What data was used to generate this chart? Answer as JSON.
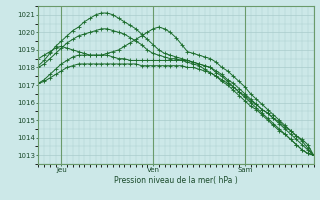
{
  "bg_color": "#cce8e8",
  "grid_color": "#aacccc",
  "line_color": "#1a6b2a",
  "vline_color": "#6a9a6a",
  "xlabel": "Pression niveau de la mer( hPa )",
  "xtick_labels": [
    "Jeu",
    "Ven",
    "Sam"
  ],
  "ylim": [
    1012.5,
    1021.5
  ],
  "yticks": [
    1013,
    1014,
    1015,
    1016,
    1017,
    1018,
    1019,
    1020,
    1021
  ],
  "xlim": [
    0,
    48
  ],
  "xtick_pos": [
    4,
    20,
    36
  ],
  "vline_pos": [
    4,
    20,
    36
  ],
  "series": [
    [
      1017.1,
      1017.2,
      1017.4,
      1017.6,
      1017.8,
      1018.0,
      1018.1,
      1018.2,
      1018.2,
      1018.2,
      1018.2,
      1018.2,
      1018.2,
      1018.2,
      1018.2,
      1018.2,
      1018.2,
      1018.2,
      1018.1,
      1018.1,
      1018.1,
      1018.1,
      1018.1,
      1018.1,
      1018.1,
      1018.1,
      1018.0,
      1018.0,
      1017.9,
      1017.8,
      1017.7,
      1017.5,
      1017.3,
      1017.1,
      1016.9,
      1016.6,
      1016.4,
      1016.1,
      1015.9,
      1015.6,
      1015.4,
      1015.1,
      1014.9,
      1014.6,
      1014.4,
      1014.1,
      1013.9,
      1013.6,
      1013.0
    ],
    [
      1017.1,
      1017.3,
      1017.6,
      1017.9,
      1018.2,
      1018.4,
      1018.6,
      1018.7,
      1018.7,
      1018.7,
      1018.7,
      1018.7,
      1018.7,
      1018.6,
      1018.5,
      1018.5,
      1018.4,
      1018.4,
      1018.4,
      1018.4,
      1018.4,
      1018.4,
      1018.4,
      1018.4,
      1018.4,
      1018.4,
      1018.3,
      1018.2,
      1018.1,
      1017.9,
      1017.7,
      1017.5,
      1017.2,
      1017.0,
      1016.7,
      1016.4,
      1016.1,
      1015.8,
      1015.6,
      1015.3,
      1015.0,
      1014.7,
      1014.4,
      1014.2,
      1013.9,
      1013.6,
      1013.3,
      1013.1,
      1013.0
    ],
    [
      1018.0,
      1018.2,
      1018.5,
      1018.8,
      1019.1,
      1019.4,
      1019.6,
      1019.8,
      1019.9,
      1020.0,
      1020.1,
      1020.2,
      1020.2,
      1020.1,
      1020.0,
      1019.9,
      1019.7,
      1019.5,
      1019.3,
      1019.0,
      1018.8,
      1018.7,
      1018.6,
      1018.5,
      1018.5,
      1018.4,
      1018.4,
      1018.3,
      1018.2,
      1018.1,
      1018.0,
      1017.8,
      1017.6,
      1017.3,
      1017.1,
      1016.8,
      1016.5,
      1016.2,
      1015.9,
      1015.6,
      1015.4,
      1015.1,
      1014.8,
      1014.5,
      1014.2,
      1013.9,
      1013.6,
      1013.3,
      1013.0
    ],
    [
      1018.1,
      1018.4,
      1018.8,
      1019.2,
      1019.5,
      1019.8,
      1020.1,
      1020.3,
      1020.6,
      1020.8,
      1021.0,
      1021.1,
      1021.1,
      1021.0,
      1020.8,
      1020.6,
      1020.4,
      1020.2,
      1019.9,
      1019.6,
      1019.3,
      1019.0,
      1018.8,
      1018.7,
      1018.6,
      1018.5,
      1018.4,
      1018.3,
      1018.2,
      1018.1,
      1018.0,
      1017.7,
      1017.5,
      1017.2,
      1016.9,
      1016.6,
      1016.3,
      1016.0,
      1015.7,
      1015.4,
      1015.1,
      1014.8,
      1014.5,
      1014.2,
      1013.9,
      1013.6,
      1013.3,
      1013.1,
      1013.0
    ],
    [
      1018.5,
      1018.7,
      1018.9,
      1019.1,
      1019.2,
      1019.1,
      1019.0,
      1018.9,
      1018.8,
      1018.7,
      1018.7,
      1018.7,
      1018.8,
      1018.9,
      1019.0,
      1019.2,
      1019.4,
      1019.6,
      1019.8,
      1020.0,
      1020.2,
      1020.3,
      1020.2,
      1020.0,
      1019.7,
      1019.3,
      1018.9,
      1018.8,
      1018.7,
      1018.6,
      1018.5,
      1018.3,
      1018.0,
      1017.8,
      1017.5,
      1017.2,
      1016.9,
      1016.5,
      1016.2,
      1015.9,
      1015.6,
      1015.3,
      1015.0,
      1014.7,
      1014.4,
      1014.1,
      1013.8,
      1013.4,
      1013.0
    ]
  ]
}
